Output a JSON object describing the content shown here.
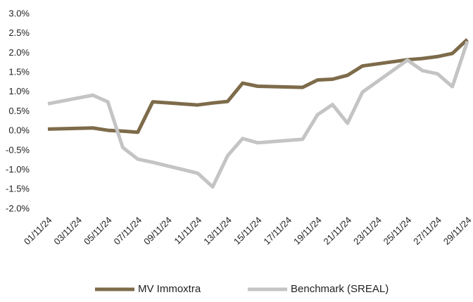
{
  "chart_data": {
    "type": "line",
    "x": [
      "01/11/24",
      "04/11/24",
      "05/11/24",
      "06/11/24",
      "07/11/24",
      "08/11/24",
      "11/11/24",
      "12/11/24",
      "13/11/24",
      "14/11/24",
      "15/11/24",
      "18/11/24",
      "19/11/24",
      "20/11/24",
      "21/11/24",
      "22/11/24",
      "25/11/24",
      "26/11/24",
      "27/11/24",
      "28/11/24",
      "29/11/24"
    ],
    "series": [
      {
        "name": "MV Immoxtra",
        "color": "#7d6b4a",
        "values": [
          0.05,
          0.08,
          0.02,
          0.0,
          -0.03,
          0.75,
          0.67,
          0.72,
          0.76,
          1.23,
          1.15,
          1.12,
          1.31,
          1.33,
          1.43,
          1.67,
          1.83,
          1.86,
          1.91,
          1.99,
          2.35
        ]
      },
      {
        "name": "Benchmark (SREAL)",
        "color": "#c4c4c4",
        "values": [
          0.7,
          0.92,
          0.75,
          -0.42,
          -0.72,
          -0.8,
          -1.08,
          -1.43,
          -0.63,
          -0.19,
          -0.3,
          -0.21,
          0.42,
          0.68,
          0.2,
          1.0,
          1.82,
          1.55,
          1.47,
          1.14,
          2.3
        ]
      }
    ],
    "xlim": [
      "01/11/24",
      "29/11/24"
    ],
    "xticks": [
      "01/11/24",
      "03/11/24",
      "05/11/24",
      "07/11/24",
      "09/11/24",
      "11/11/24",
      "13/11/24",
      "15/11/24",
      "17/11/24",
      "19/11/24",
      "21/11/24",
      "23/11/24",
      "25/11/24",
      "27/11/24",
      "29/11/24"
    ],
    "ylim": [
      -2,
      3
    ],
    "yticks": [
      {
        "value": -2,
        "label": "-2.0%"
      },
      {
        "value": -1.5,
        "label": "-1.5%"
      },
      {
        "value": -1,
        "label": "-1.0%"
      },
      {
        "value": -0.5,
        "label": "-0.5%"
      },
      {
        "value": 0,
        "label": "0.0%"
      },
      {
        "value": 0.5,
        "label": "0.5%"
      },
      {
        "value": 1,
        "label": "1.0%"
      },
      {
        "value": 1.5,
        "label": "1.5%"
      },
      {
        "value": 2,
        "label": "2.0%"
      },
      {
        "value": 2.5,
        "label": "2.5%"
      },
      {
        "value": 3,
        "label": "3.0%"
      }
    ]
  }
}
